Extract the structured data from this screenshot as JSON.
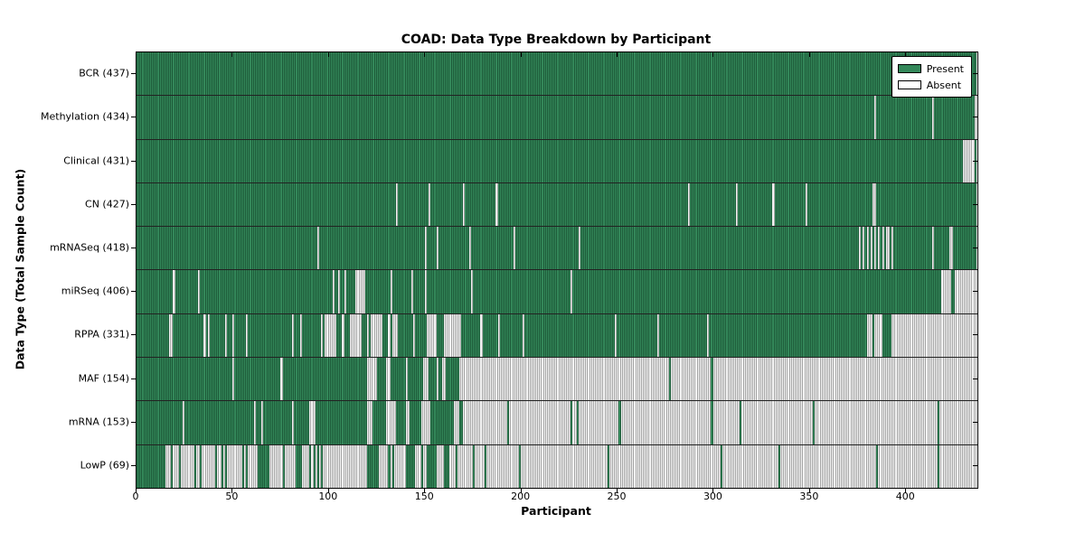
{
  "title": "COAD: Data Type Breakdown by Participant",
  "axes": {
    "x_label": "Participant",
    "y_label": "Data Type (Total Sample Count)",
    "x_ticks": [
      0,
      50,
      100,
      150,
      200,
      250,
      300,
      350,
      400
    ]
  },
  "legend": {
    "present_label": "Present",
    "absent_label": "Absent"
  },
  "colors": {
    "present": "#338759",
    "present_edge": "#1e5c3a",
    "absent": "#ffffff",
    "absent_edge": "#a6a6a6"
  },
  "chart_data": {
    "type": "heatmap",
    "title": "COAD: Data Type Breakdown by Participant",
    "xlabel": "Participant",
    "ylabel": "Data Type (Total Sample Count)",
    "xlim": [
      0,
      437
    ],
    "n_participants": 437,
    "legend_position": "upper right",
    "value_meaning": {
      "present": 1,
      "absent": 0
    },
    "rows": [
      {
        "label": "BCR",
        "count": 437,
        "mode": "absent",
        "ranges": []
      },
      {
        "label": "Methylation",
        "count": 434,
        "mode": "absent",
        "ranges": [
          [
            384,
            384
          ],
          [
            414,
            414
          ],
          [
            436,
            436
          ]
        ]
      },
      {
        "label": "Clinical",
        "count": 431,
        "mode": "absent",
        "ranges": [
          [
            430,
            435
          ]
        ]
      },
      {
        "label": "CN",
        "count": 427,
        "mode": "absent",
        "ranges": [
          [
            135,
            135
          ],
          [
            152,
            152
          ],
          [
            170,
            170
          ],
          [
            187,
            187
          ],
          [
            287,
            287
          ],
          [
            312,
            312
          ],
          [
            331,
            331
          ],
          [
            348,
            348
          ],
          [
            383,
            384
          ]
        ]
      },
      {
        "label": "mRNASeq",
        "count": 418,
        "mode": "absent",
        "ranges": [
          [
            94,
            94
          ],
          [
            150,
            150
          ],
          [
            156,
            156
          ],
          [
            173,
            173
          ],
          [
            196,
            196
          ],
          [
            230,
            230
          ],
          [
            376,
            376
          ],
          [
            378,
            378
          ],
          [
            380,
            380
          ],
          [
            382,
            382
          ],
          [
            384,
            384
          ],
          [
            386,
            386
          ],
          [
            388,
            388
          ],
          [
            390,
            391
          ],
          [
            393,
            393
          ],
          [
            414,
            414
          ],
          [
            423,
            424
          ]
        ]
      },
      {
        "label": "miRSeq",
        "count": 406,
        "mode": "absent",
        "ranges": [
          [
            19,
            19
          ],
          [
            32,
            32
          ],
          [
            102,
            102
          ],
          [
            105,
            105
          ],
          [
            108,
            108
          ],
          [
            114,
            118
          ],
          [
            132,
            132
          ],
          [
            143,
            143
          ],
          [
            150,
            150
          ],
          [
            174,
            174
          ],
          [
            226,
            226
          ],
          [
            419,
            423
          ],
          [
            426,
            436
          ]
        ]
      },
      {
        "label": "RPPA",
        "count": 331,
        "mode": "absent",
        "ranges": [
          [
            17,
            18
          ],
          [
            35,
            35
          ],
          [
            37,
            37
          ],
          [
            46,
            46
          ],
          [
            50,
            50
          ],
          [
            57,
            57
          ],
          [
            81,
            81
          ],
          [
            85,
            85
          ],
          [
            96,
            96
          ],
          [
            98,
            103
          ],
          [
            107,
            107
          ],
          [
            111,
            116
          ],
          [
            120,
            120
          ],
          [
            122,
            127
          ],
          [
            131,
            131
          ],
          [
            133,
            135
          ],
          [
            144,
            144
          ],
          [
            151,
            155
          ],
          [
            160,
            168
          ],
          [
            179,
            179
          ],
          [
            188,
            188
          ],
          [
            201,
            201
          ],
          [
            249,
            249
          ],
          [
            271,
            271
          ],
          [
            297,
            297
          ],
          [
            380,
            382
          ],
          [
            384,
            387
          ],
          [
            393,
            436
          ]
        ]
      },
      {
        "label": "MAF",
        "count": 154,
        "mode": "present",
        "ranges": [
          [
            0,
            49
          ],
          [
            51,
            74
          ],
          [
            76,
            119
          ],
          [
            125,
            129
          ],
          [
            132,
            139
          ],
          [
            141,
            148
          ],
          [
            152,
            155
          ],
          [
            157,
            158
          ],
          [
            161,
            167
          ],
          [
            277,
            277
          ],
          [
            299,
            299
          ]
        ]
      },
      {
        "label": "mRNA",
        "count": 153,
        "mode": "present",
        "ranges": [
          [
            0,
            23
          ],
          [
            25,
            60
          ],
          [
            62,
            64
          ],
          [
            66,
            80
          ],
          [
            82,
            89
          ],
          [
            93,
            119
          ],
          [
            123,
            129
          ],
          [
            135,
            139
          ],
          [
            142,
            147
          ],
          [
            153,
            164
          ],
          [
            168,
            169
          ],
          [
            193,
            193
          ],
          [
            226,
            226
          ],
          [
            229,
            229
          ],
          [
            251,
            251
          ],
          [
            299,
            299
          ],
          [
            314,
            314
          ],
          [
            352,
            352
          ],
          [
            417,
            417
          ]
        ]
      },
      {
        "label": "LowP",
        "count": 69,
        "mode": "present",
        "ranges": [
          [
            0,
            14
          ],
          [
            18,
            18
          ],
          [
            22,
            22
          ],
          [
            30,
            30
          ],
          [
            33,
            33
          ],
          [
            41,
            41
          ],
          [
            44,
            44
          ],
          [
            46,
            46
          ],
          [
            55,
            55
          ],
          [
            57,
            57
          ],
          [
            63,
            68
          ],
          [
            76,
            76
          ],
          [
            83,
            85
          ],
          [
            90,
            90
          ],
          [
            92,
            92
          ],
          [
            94,
            94
          ],
          [
            96,
            96
          ],
          [
            120,
            125
          ],
          [
            131,
            131
          ],
          [
            133,
            133
          ],
          [
            140,
            144
          ],
          [
            148,
            148
          ],
          [
            151,
            155
          ],
          [
            160,
            162
          ],
          [
            166,
            166
          ],
          [
            175,
            175
          ],
          [
            181,
            181
          ],
          [
            199,
            199
          ],
          [
            245,
            245
          ],
          [
            304,
            304
          ],
          [
            334,
            334
          ],
          [
            385,
            385
          ],
          [
            417,
            417
          ]
        ]
      }
    ]
  }
}
